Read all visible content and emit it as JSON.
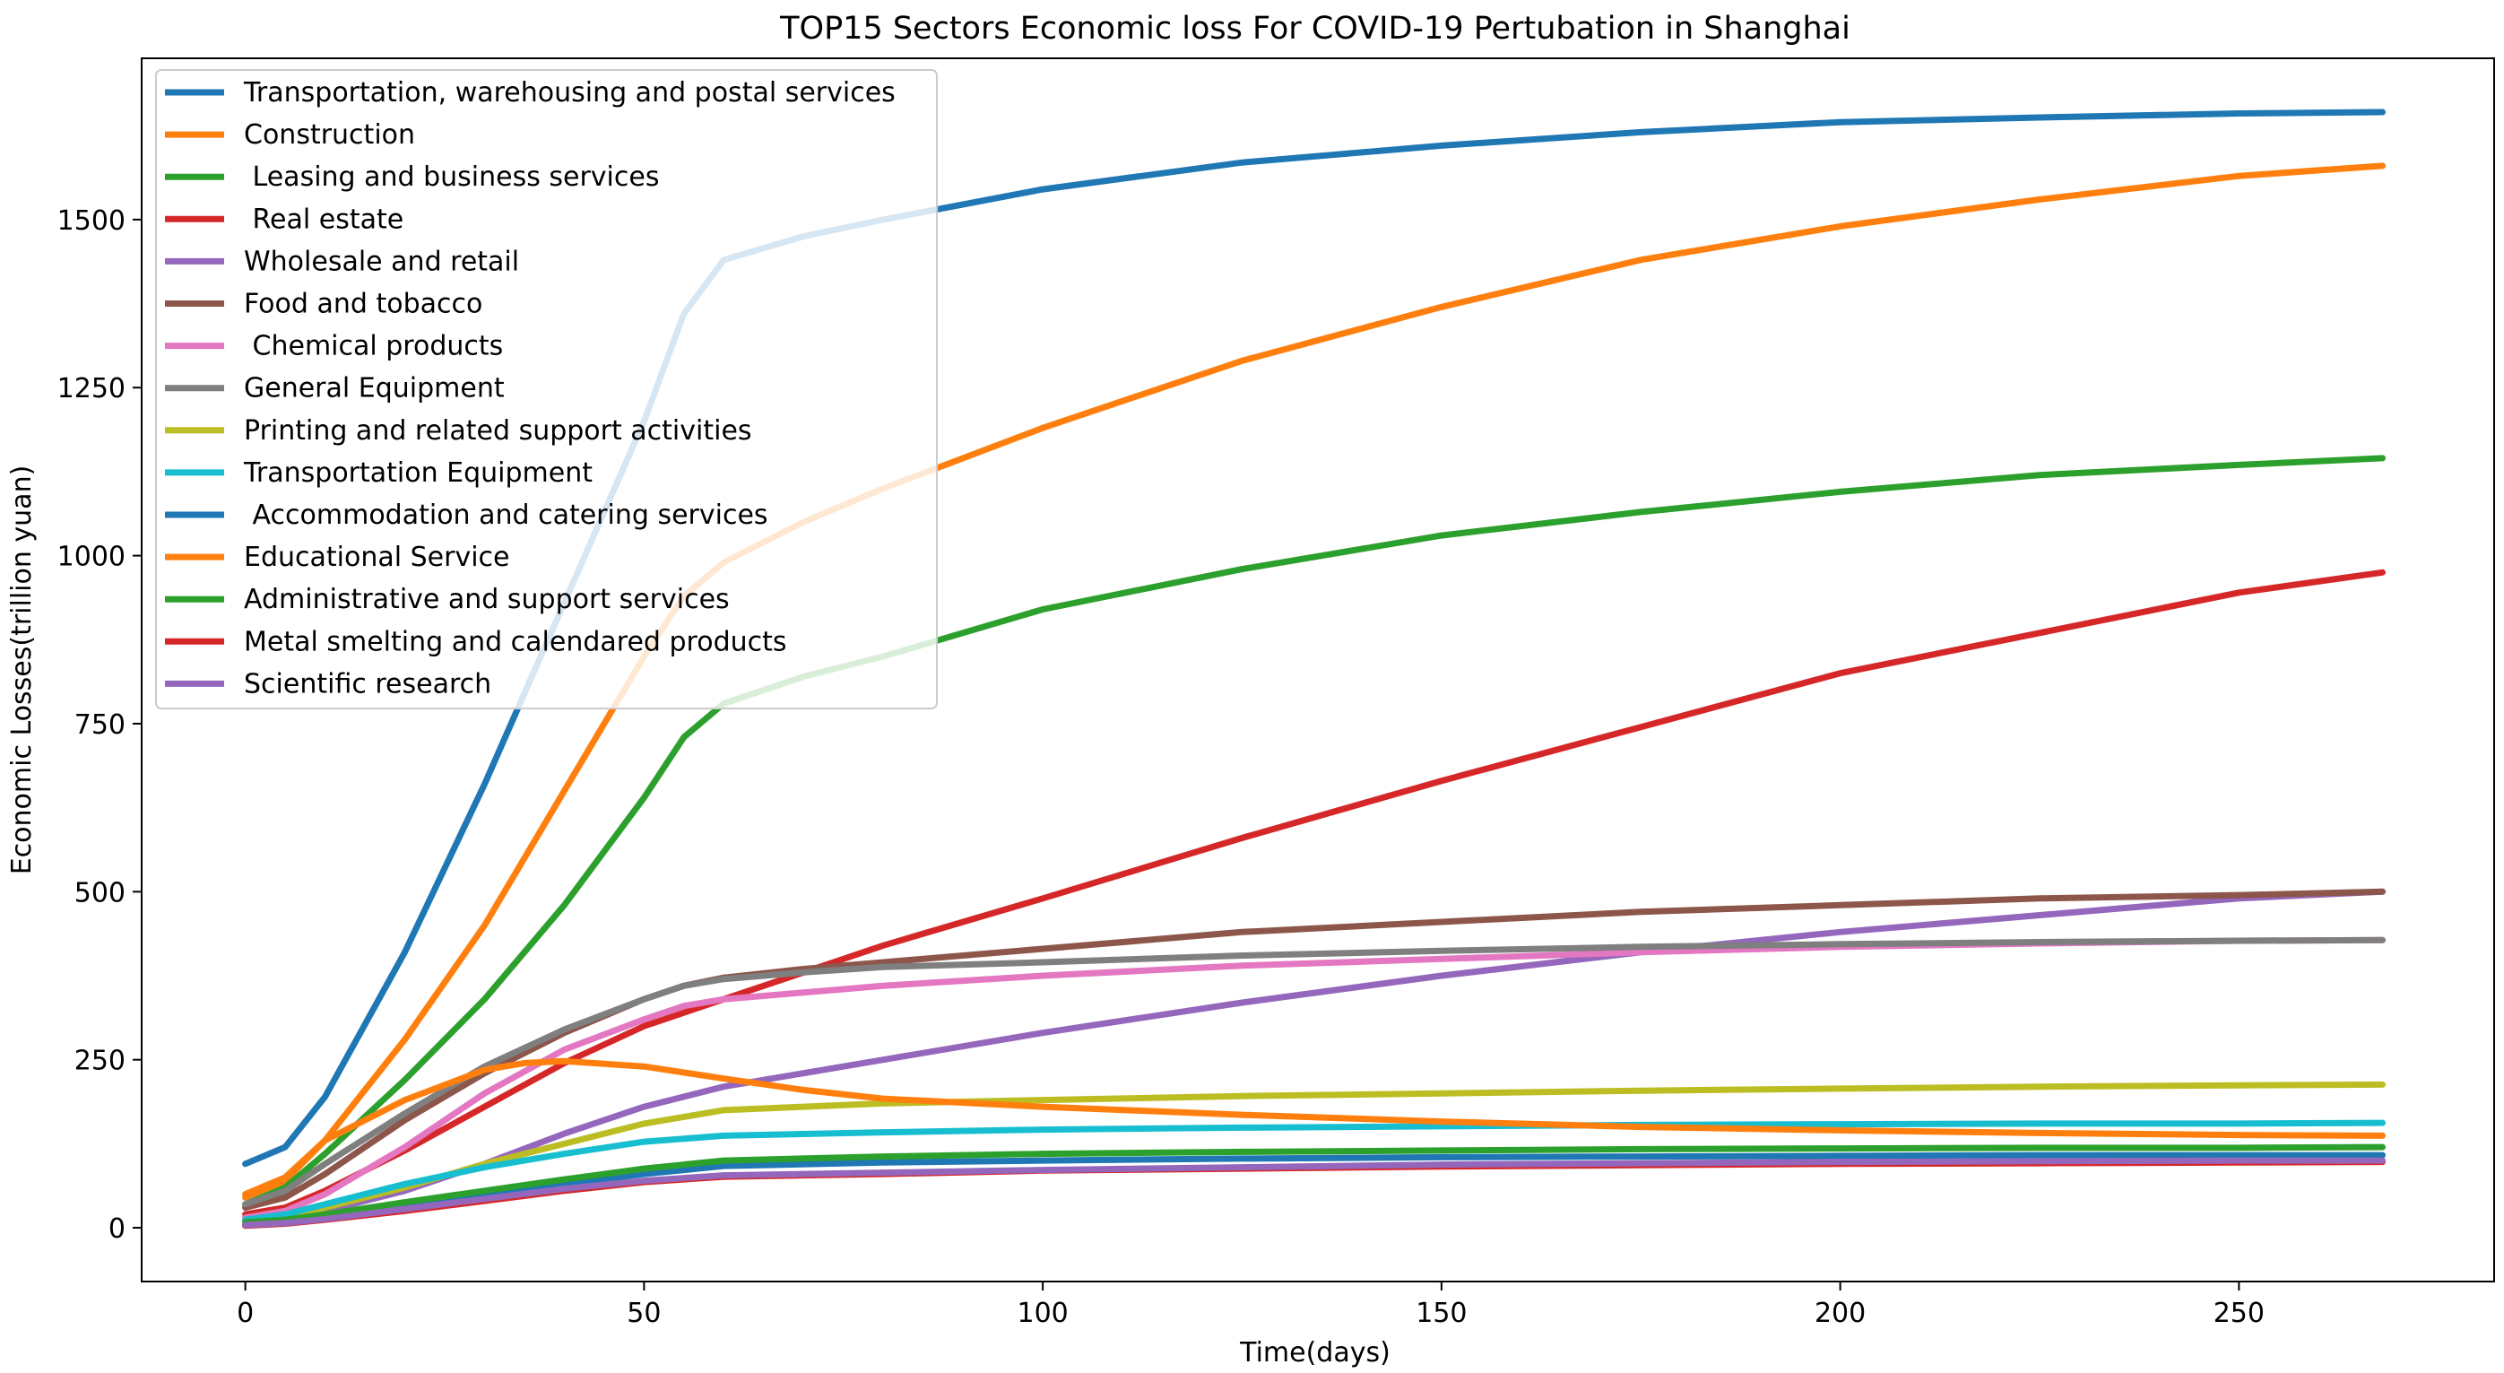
{
  "chart_data": {
    "type": "line",
    "title": "TOP15 Sectors Economic loss For COVID-19 Pertubation in Shanghai",
    "xlabel": "Time(days)",
    "ylabel": "Economic Losses(trillion yuan)",
    "xlim": [
      -13,
      282
    ],
    "ylim": [
      -80,
      1740
    ],
    "xticks": [
      0,
      50,
      100,
      150,
      200,
      250
    ],
    "yticks": [
      0,
      250,
      500,
      750,
      1000,
      1250,
      1500
    ],
    "legend_position": "top-left",
    "series": [
      {
        "name": "Transportation, warehousing and postal services",
        "color": "#1f77b4",
        "points": [
          [
            0,
            95
          ],
          [
            5,
            120
          ],
          [
            10,
            195
          ],
          [
            20,
            410
          ],
          [
            30,
            660
          ],
          [
            40,
            930
          ],
          [
            50,
            1200
          ],
          [
            55,
            1360
          ],
          [
            60,
            1440
          ],
          [
            70,
            1475
          ],
          [
            80,
            1500
          ],
          [
            100,
            1545
          ],
          [
            125,
            1585
          ],
          [
            150,
            1610
          ],
          [
            175,
            1630
          ],
          [
            200,
            1645
          ],
          [
            225,
            1652
          ],
          [
            250,
            1658
          ],
          [
            268,
            1660
          ]
        ]
      },
      {
        "name": "Construction",
        "color": "#ff7f0e",
        "points": [
          [
            0,
            45
          ],
          [
            5,
            70
          ],
          [
            10,
            130
          ],
          [
            20,
            280
          ],
          [
            30,
            450
          ],
          [
            40,
            650
          ],
          [
            50,
            850
          ],
          [
            55,
            940
          ],
          [
            60,
            990
          ],
          [
            70,
            1050
          ],
          [
            80,
            1100
          ],
          [
            100,
            1190
          ],
          [
            125,
            1290
          ],
          [
            150,
            1370
          ],
          [
            175,
            1440
          ],
          [
            200,
            1490
          ],
          [
            225,
            1530
          ],
          [
            250,
            1565
          ],
          [
            268,
            1580
          ]
        ]
      },
      {
        "name": " Leasing and business services",
        "color": "#2ca02c",
        "points": [
          [
            0,
            35
          ],
          [
            5,
            60
          ],
          [
            10,
            110
          ],
          [
            20,
            220
          ],
          [
            30,
            340
          ],
          [
            40,
            480
          ],
          [
            50,
            640
          ],
          [
            55,
            730
          ],
          [
            60,
            780
          ],
          [
            70,
            820
          ],
          [
            80,
            850
          ],
          [
            100,
            920
          ],
          [
            125,
            980
          ],
          [
            150,
            1030
          ],
          [
            175,
            1065
          ],
          [
            200,
            1095
          ],
          [
            225,
            1120
          ],
          [
            250,
            1135
          ],
          [
            268,
            1145
          ]
        ]
      },
      {
        "name": " Real estate",
        "color": "#d62728",
        "points": [
          [
            0,
            20
          ],
          [
            5,
            30
          ],
          [
            10,
            55
          ],
          [
            20,
            115
          ],
          [
            30,
            180
          ],
          [
            40,
            245
          ],
          [
            50,
            300
          ],
          [
            60,
            340
          ],
          [
            70,
            380
          ],
          [
            80,
            420
          ],
          [
            100,
            490
          ],
          [
            125,
            580
          ],
          [
            150,
            665
          ],
          [
            175,
            745
          ],
          [
            200,
            825
          ],
          [
            225,
            885
          ],
          [
            250,
            945
          ],
          [
            268,
            975
          ]
        ]
      },
      {
        "name": "Wholesale and retail",
        "color": "#9467bd",
        "points": [
          [
            0,
            10
          ],
          [
            5,
            15
          ],
          [
            10,
            25
          ],
          [
            20,
            55
          ],
          [
            30,
            95
          ],
          [
            40,
            140
          ],
          [
            50,
            180
          ],
          [
            60,
            210
          ],
          [
            80,
            250
          ],
          [
            100,
            290
          ],
          [
            125,
            335
          ],
          [
            150,
            375
          ],
          [
            175,
            410
          ],
          [
            200,
            440
          ],
          [
            225,
            465
          ],
          [
            250,
            490
          ],
          [
            268,
            500
          ]
        ]
      },
      {
        "name": "Food and tobacco",
        "color": "#8c564b",
        "points": [
          [
            0,
            30
          ],
          [
            5,
            45
          ],
          [
            10,
            80
          ],
          [
            20,
            160
          ],
          [
            30,
            230
          ],
          [
            40,
            290
          ],
          [
            50,
            340
          ],
          [
            55,
            360
          ],
          [
            60,
            372
          ],
          [
            70,
            385
          ],
          [
            80,
            395
          ],
          [
            100,
            415
          ],
          [
            125,
            440
          ],
          [
            150,
            455
          ],
          [
            175,
            470
          ],
          [
            200,
            480
          ],
          [
            225,
            490
          ],
          [
            250,
            495
          ],
          [
            268,
            500
          ]
        ]
      },
      {
        "name": " Chemical products",
        "color": "#e377c2",
        "points": [
          [
            0,
            15
          ],
          [
            5,
            25
          ],
          [
            10,
            50
          ],
          [
            20,
            120
          ],
          [
            30,
            200
          ],
          [
            40,
            265
          ],
          [
            50,
            310
          ],
          [
            55,
            330
          ],
          [
            60,
            340
          ],
          [
            70,
            350
          ],
          [
            80,
            360
          ],
          [
            100,
            375
          ],
          [
            125,
            390
          ],
          [
            150,
            400
          ],
          [
            175,
            410
          ],
          [
            200,
            418
          ],
          [
            225,
            423
          ],
          [
            250,
            427
          ],
          [
            268,
            428
          ]
        ]
      },
      {
        "name": "General Equipment",
        "color": "#7f7f7f",
        "points": [
          [
            0,
            35
          ],
          [
            5,
            55
          ],
          [
            10,
            95
          ],
          [
            20,
            170
          ],
          [
            30,
            240
          ],
          [
            40,
            295
          ],
          [
            50,
            340
          ],
          [
            55,
            360
          ],
          [
            60,
            370
          ],
          [
            70,
            380
          ],
          [
            80,
            388
          ],
          [
            100,
            395
          ],
          [
            125,
            405
          ],
          [
            150,
            412
          ],
          [
            175,
            418
          ],
          [
            200,
            422
          ],
          [
            225,
            425
          ],
          [
            250,
            427
          ],
          [
            268,
            428
          ]
        ]
      },
      {
        "name": "Printing and related support activities",
        "color": "#bcbd22",
        "points": [
          [
            0,
            10
          ],
          [
            5,
            15
          ],
          [
            10,
            30
          ],
          [
            20,
            60
          ],
          [
            30,
            95
          ],
          [
            40,
            125
          ],
          [
            50,
            155
          ],
          [
            60,
            175
          ],
          [
            70,
            180
          ],
          [
            80,
            185
          ],
          [
            100,
            190
          ],
          [
            125,
            196
          ],
          [
            150,
            200
          ],
          [
            175,
            204
          ],
          [
            200,
            207
          ],
          [
            225,
            210
          ],
          [
            250,
            212
          ],
          [
            268,
            213
          ]
        ]
      },
      {
        "name": "Transportation Equipment",
        "color": "#17becf",
        "points": [
          [
            0,
            12
          ],
          [
            5,
            20
          ],
          [
            10,
            35
          ],
          [
            20,
            65
          ],
          [
            30,
            90
          ],
          [
            40,
            110
          ],
          [
            50,
            128
          ],
          [
            60,
            137
          ],
          [
            80,
            142
          ],
          [
            100,
            146
          ],
          [
            125,
            149
          ],
          [
            150,
            151
          ],
          [
            175,
            153
          ],
          [
            200,
            154
          ],
          [
            225,
            155
          ],
          [
            250,
            155
          ],
          [
            268,
            156
          ]
        ]
      },
      {
        "name": " Accommodation and catering services",
        "color": "#1f77b4",
        "points": [
          [
            0,
            5
          ],
          [
            5,
            8
          ],
          [
            10,
            15
          ],
          [
            20,
            30
          ],
          [
            30,
            48
          ],
          [
            40,
            65
          ],
          [
            50,
            80
          ],
          [
            60,
            92
          ],
          [
            80,
            97
          ],
          [
            100,
            100
          ],
          [
            125,
            103
          ],
          [
            150,
            105
          ],
          [
            175,
            106
          ],
          [
            200,
            107
          ],
          [
            225,
            108
          ],
          [
            250,
            108
          ],
          [
            268,
            108
          ]
        ]
      },
      {
        "name": "Educational Service",
        "color": "#ff7f0e",
        "points": [
          [
            0,
            50
          ],
          [
            5,
            75
          ],
          [
            10,
            130
          ],
          [
            20,
            190
          ],
          [
            30,
            235
          ],
          [
            35,
            245
          ],
          [
            40,
            248
          ],
          [
            50,
            240
          ],
          [
            60,
            222
          ],
          [
            70,
            205
          ],
          [
            80,
            192
          ],
          [
            100,
            180
          ],
          [
            125,
            168
          ],
          [
            150,
            158
          ],
          [
            175,
            150
          ],
          [
            200,
            145
          ],
          [
            225,
            141
          ],
          [
            250,
            138
          ],
          [
            268,
            137
          ]
        ]
      },
      {
        "name": "Administrative and support services",
        "color": "#2ca02c",
        "points": [
          [
            0,
            8
          ],
          [
            5,
            12
          ],
          [
            10,
            20
          ],
          [
            20,
            38
          ],
          [
            30,
            55
          ],
          [
            40,
            72
          ],
          [
            50,
            88
          ],
          [
            60,
            100
          ],
          [
            80,
            106
          ],
          [
            100,
            110
          ],
          [
            125,
            113
          ],
          [
            150,
            115
          ],
          [
            175,
            117
          ],
          [
            200,
            118
          ],
          [
            225,
            119
          ],
          [
            250,
            119
          ],
          [
            268,
            120
          ]
        ]
      },
      {
        "name": "Metal smelting and calendared products",
        "color": "#d62728",
        "points": [
          [
            0,
            3
          ],
          [
            5,
            6
          ],
          [
            10,
            12
          ],
          [
            20,
            25
          ],
          [
            30,
            40
          ],
          [
            40,
            55
          ],
          [
            50,
            68
          ],
          [
            60,
            76
          ],
          [
            80,
            80
          ],
          [
            100,
            85
          ],
          [
            125,
            88
          ],
          [
            150,
            91
          ],
          [
            175,
            93
          ],
          [
            200,
            95
          ],
          [
            225,
            96
          ],
          [
            250,
            97
          ],
          [
            268,
            98
          ]
        ]
      },
      {
        "name": "Scientific research",
        "color": "#9467bd",
        "points": [
          [
            0,
            4
          ],
          [
            5,
            7
          ],
          [
            10,
            13
          ],
          [
            20,
            28
          ],
          [
            30,
            43
          ],
          [
            40,
            58
          ],
          [
            50,
            70
          ],
          [
            60,
            78
          ],
          [
            80,
            82
          ],
          [
            100,
            86
          ],
          [
            125,
            90
          ],
          [
            150,
            94
          ],
          [
            175,
            96
          ],
          [
            200,
            98
          ],
          [
            225,
            99
          ],
          [
            250,
            100
          ],
          [
            268,
            100
          ]
        ]
      }
    ]
  }
}
